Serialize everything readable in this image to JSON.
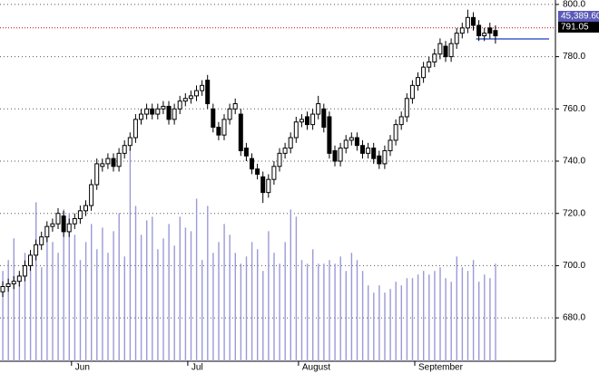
{
  "chart_data": {
    "type": "candlestick",
    "categories": [
      null,
      null,
      null,
      null,
      null,
      null,
      null,
      null,
      null,
      null,
      null,
      null,
      null,
      "Jun",
      null,
      null,
      null,
      null,
      null,
      null,
      null,
      null,
      null,
      null,
      null,
      null,
      null,
      null,
      null,
      null,
      null,
      null,
      null,
      null,
      "Jul",
      null,
      null,
      null,
      null,
      null,
      null,
      null,
      null,
      null,
      null,
      null,
      null,
      null,
      null,
      null,
      null,
      null,
      null,
      null,
      "August",
      null,
      null,
      null,
      null,
      null,
      null,
      null,
      null,
      null,
      null,
      null,
      null,
      null,
      null,
      null,
      null,
      null,
      null,
      null,
      null,
      "September",
      null,
      null,
      null,
      null,
      null,
      null,
      null,
      null,
      null,
      null,
      null,
      null,
      null,
      null
    ],
    "open": [
      690,
      692,
      693,
      694,
      696,
      700,
      704,
      708,
      711,
      715,
      716,
      719,
      713,
      716,
      718,
      721,
      723,
      731,
      738,
      739,
      741,
      738,
      743,
      746,
      749,
      756,
      758,
      760,
      758,
      760,
      761,
      756,
      760,
      763,
      764,
      765,
      767,
      771,
      760,
      753,
      750,
      756,
      760,
      758,
      745,
      741,
      737,
      734,
      728,
      733,
      738,
      743,
      745,
      749,
      755,
      757,
      754,
      758,
      760,
      757,
      744,
      740,
      745,
      748,
      749,
      746,
      743,
      745,
      742,
      739,
      744,
      748,
      754,
      757,
      764,
      769,
      772,
      776,
      778,
      781,
      784,
      780,
      785,
      789,
      791,
      795,
      792,
      788,
      791,
      790
    ],
    "high": [
      694,
      695,
      696,
      698,
      702,
      706,
      710,
      713,
      717,
      718,
      722,
      721,
      718,
      720,
      723,
      725,
      733,
      741,
      741,
      743,
      743,
      745,
      748,
      751,
      758,
      760,
      762,
      762,
      762,
      763,
      763,
      762,
      765,
      766,
      767,
      769,
      771,
      773,
      762,
      755,
      758,
      762,
      764,
      760,
      747,
      743,
      739,
      736,
      735,
      740,
      745,
      747,
      751,
      757,
      758,
      759,
      760,
      765,
      762,
      759,
      746,
      747,
      750,
      751,
      751,
      748,
      747,
      747,
      744,
      746,
      750,
      756,
      759,
      766,
      771,
      774,
      778,
      780,
      783,
      787,
      786,
      787,
      791,
      793,
      798,
      797,
      794,
      791,
      793,
      792
    ],
    "low": [
      688,
      690,
      691,
      692,
      694,
      698,
      702,
      706,
      709,
      713,
      714,
      711,
      711,
      714,
      716,
      719,
      721,
      729,
      736,
      737,
      736,
      736,
      741,
      744,
      747,
      754,
      756,
      756,
      756,
      758,
      754,
      754,
      758,
      761,
      762,
      763,
      765,
      760,
      751,
      748,
      748,
      754,
      758,
      742,
      740,
      735,
      733,
      724,
      726,
      731,
      736,
      741,
      743,
      747,
      753,
      752,
      752,
      756,
      751,
      741,
      738,
      738,
      743,
      746,
      744,
      741,
      741,
      739,
      737,
      737,
      742,
      746,
      752,
      755,
      762,
      767,
      770,
      774,
      776,
      779,
      778,
      778,
      783,
      787,
      789,
      790,
      786,
      786,
      787,
      785
    ],
    "close": [
      692,
      693,
      694,
      696,
      700,
      704,
      708,
      711,
      715,
      716,
      720,
      713,
      716,
      718,
      721,
      723,
      731,
      739,
      739,
      741,
      738,
      743,
      746,
      749,
      756,
      758,
      760,
      758,
      760,
      761,
      756,
      760,
      763,
      764,
      765,
      767,
      769,
      762,
      753,
      750,
      756,
      760,
      762,
      744,
      742,
      737,
      735,
      728,
      733,
      738,
      743,
      745,
      749,
      755,
      756,
      754,
      758,
      762,
      753,
      743,
      740,
      745,
      748,
      749,
      746,
      743,
      745,
      741,
      739,
      744,
      748,
      754,
      757,
      764,
      769,
      772,
      776,
      778,
      781,
      785,
      780,
      785,
      789,
      791,
      795,
      792,
      788,
      789,
      789,
      788
    ],
    "up_color": "#ffffff",
    "down_color": "#000000",
    "volume": {
      "axis": "y2",
      "color": "#9a9ad8",
      "values": [
        25,
        28,
        34,
        24,
        30,
        29,
        44,
        26,
        36,
        33,
        30,
        42,
        41,
        35,
        28,
        33,
        38,
        31,
        37,
        30,
        36,
        41,
        29,
        59,
        43,
        35,
        39,
        40,
        31,
        34,
        38,
        32,
        40,
        37,
        36,
        45,
        28,
        43,
        30,
        33,
        38,
        35,
        30,
        27,
        29,
        33,
        31,
        25,
        36,
        30,
        27,
        33,
        42,
        40,
        28,
        27,
        31,
        27,
        27,
        28,
        27,
        29,
        25,
        30,
        28,
        25,
        21,
        19,
        21,
        19,
        20,
        22,
        21,
        23,
        23,
        24,
        25,
        24,
        25,
        26,
        23,
        22,
        29,
        26,
        25,
        28,
        22,
        24,
        23,
        27
      ]
    },
    "ylim": [
      663.4,
      801.7
    ],
    "yticks": [
      {
        "value": 800,
        "label": "800.0"
      },
      {
        "value": 780,
        "label": "780.0"
      },
      {
        "value": 760,
        "label": "760.0"
      },
      {
        "value": 740,
        "label": "740.0"
      },
      {
        "value": 720,
        "label": "720.0"
      },
      {
        "value": 700,
        "label": "700.0"
      },
      {
        "value": 680,
        "label": "680.0"
      }
    ],
    "y2lim": [
      0,
      100
    ],
    "grid": true,
    "readout": "45,389.60",
    "last_price": {
      "value": 791.05,
      "label": "791.05",
      "color": "#cc0000"
    },
    "reference_line": {
      "value": 786.8,
      "color": "#1f3fbf"
    }
  }
}
